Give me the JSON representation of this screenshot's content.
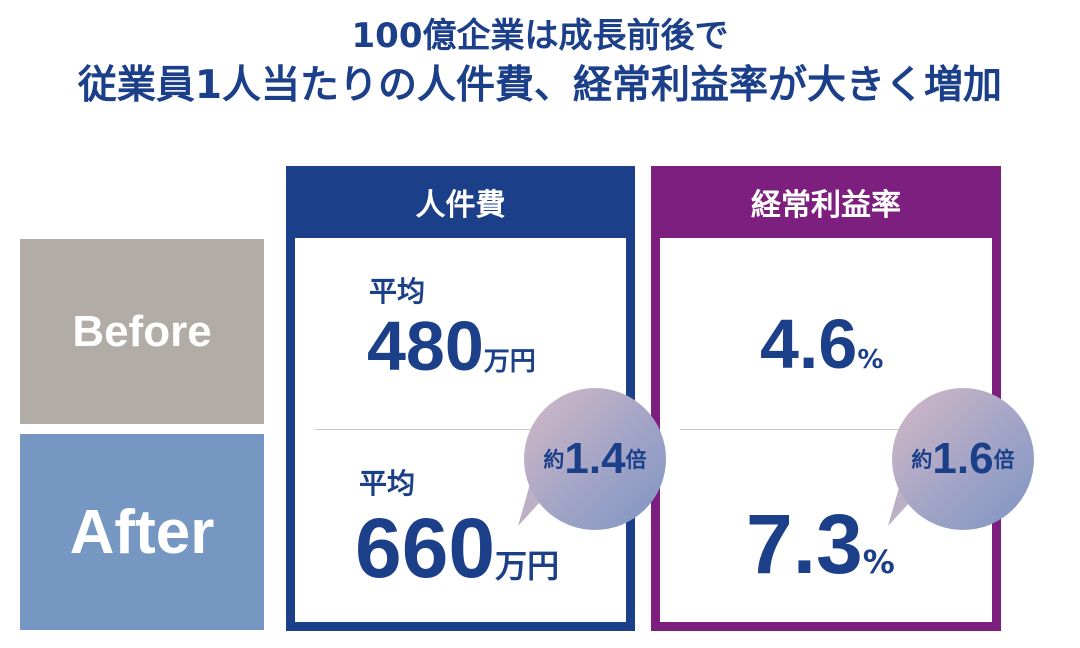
{
  "title": {
    "line1": "100億企業は成長前後で",
    "line2": "従業員1人当たりの人件費、経常利益率が大きく増加"
  },
  "rows": {
    "before": "Before",
    "after": "After"
  },
  "labor_cost": {
    "header": "人件費",
    "before_prefix": "平均",
    "before_value": "480",
    "before_unit": "万円",
    "after_prefix": "平均",
    "after_value": "660",
    "after_unit": "万円",
    "growth_prefix": "約",
    "growth_value": "1.4",
    "growth_suffix": "倍"
  },
  "profit_margin": {
    "header": "経常利益率",
    "before_value": "4.6",
    "before_unit": "%",
    "after_value": "7.3",
    "after_unit": "%",
    "growth_prefix": "約",
    "growth_value": "1.6",
    "growth_suffix": "倍"
  },
  "colors": {
    "navy": "#1c3f8a",
    "purple": "#7c1f7f",
    "before_gray": "#b2aca6",
    "after_blue": "#7597c2"
  }
}
